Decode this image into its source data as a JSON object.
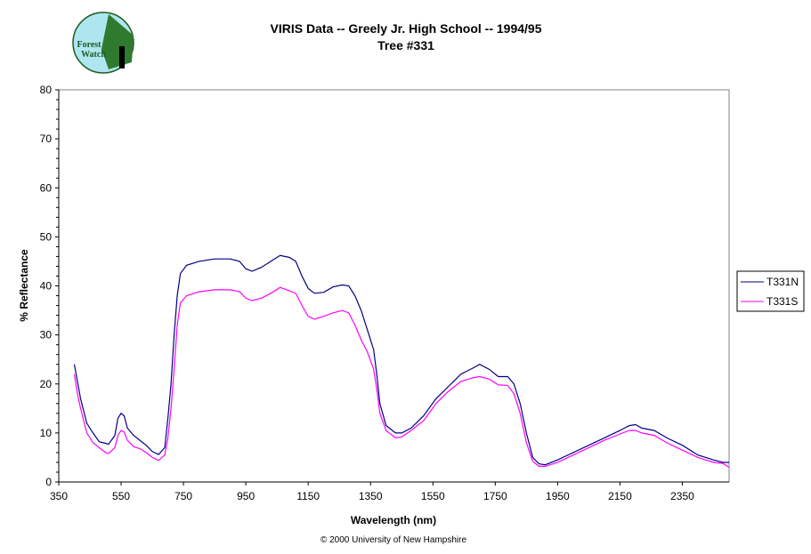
{
  "logo": {
    "text_line1": "Forest",
    "text_line2": "Watch"
  },
  "footer": "© 2000 University of New Hampshire",
  "chart_data": {
    "type": "line",
    "title": "VIRIS Data -- Greely Jr. High School -- 1994/95",
    "subtitle": "Tree #331",
    "xlabel": "Wavelength (nm)",
    "ylabel": "% Reflectance",
    "xlim": [
      350,
      2500
    ],
    "ylim": [
      0,
      80
    ],
    "xticks": [
      350,
      550,
      750,
      950,
      1150,
      1350,
      1550,
      1750,
      1950,
      2150,
      2350
    ],
    "yticks": [
      0,
      10,
      20,
      30,
      40,
      50,
      60,
      70,
      80
    ],
    "grid": false,
    "legend": "right",
    "x": [
      400,
      410,
      420,
      440,
      460,
      480,
      500,
      510,
      530,
      540,
      550,
      560,
      570,
      590,
      610,
      630,
      650,
      670,
      690,
      700,
      710,
      720,
      730,
      740,
      760,
      800,
      850,
      900,
      930,
      950,
      970,
      1000,
      1030,
      1060,
      1090,
      1110,
      1130,
      1150,
      1170,
      1200,
      1230,
      1260,
      1280,
      1300,
      1320,
      1340,
      1360,
      1370,
      1380,
      1400,
      1430,
      1450,
      1480,
      1520,
      1560,
      1600,
      1640,
      1680,
      1700,
      1730,
      1760,
      1790,
      1810,
      1830,
      1850,
      1870,
      1890,
      1910,
      1950,
      2000,
      2050,
      2100,
      2150,
      2180,
      2200,
      2220,
      2260,
      2300,
      2350,
      2400,
      2450,
      2480,
      2500
    ],
    "series": [
      {
        "name": "T331N",
        "color": "#000080",
        "values": [
          24,
          20.5,
          17,
          12,
          10,
          8.2,
          7.9,
          7.7,
          9.5,
          13,
          14,
          13.5,
          11,
          9.5,
          8.5,
          7.5,
          6.2,
          5.6,
          7,
          13,
          20,
          30,
          38,
          42.5,
          44.2,
          45,
          45.5,
          45.5,
          45,
          43.5,
          43,
          43.8,
          45,
          46.2,
          45.8,
          45,
          42,
          39.5,
          38.5,
          38.7,
          39.8,
          40.2,
          40,
          38,
          35,
          31,
          27,
          22,
          16,
          11.5,
          10,
          10,
          11,
          13.5,
          17,
          19.5,
          22,
          23.3,
          24,
          23,
          21.5,
          21.5,
          20,
          16,
          10,
          5,
          3.7,
          3.5,
          4.5,
          6,
          7.5,
          9,
          10.5,
          11.5,
          11.7,
          11,
          10.5,
          9,
          7.5,
          5.5,
          4.5,
          4,
          4
        ]
      },
      {
        "name": "T331S",
        "color": "#FF00FF",
        "values": [
          22,
          18,
          15,
          10,
          8,
          7,
          6,
          5.8,
          7,
          9.5,
          10.5,
          10.2,
          8.5,
          7.2,
          6.8,
          6,
          5,
          4.4,
          5.5,
          9,
          15,
          23,
          32,
          36.5,
          38,
          38.8,
          39.2,
          39.2,
          38.8,
          37.5,
          37,
          37.5,
          38.5,
          39.7,
          39,
          38.5,
          36,
          33.8,
          33.2,
          33.8,
          34.5,
          35,
          34.5,
          32,
          29,
          26.5,
          23,
          19,
          14,
          10.5,
          9,
          9.2,
          10.5,
          12.5,
          16,
          18.5,
          20.5,
          21.3,
          21.5,
          21,
          19.8,
          19.7,
          18,
          14,
          8,
          4.2,
          3.2,
          3.2,
          4,
          5.5,
          7,
          8.5,
          9.8,
          10.5,
          10.5,
          10,
          9.5,
          8,
          6.5,
          5,
          4,
          3.8,
          3
        ]
      }
    ]
  }
}
